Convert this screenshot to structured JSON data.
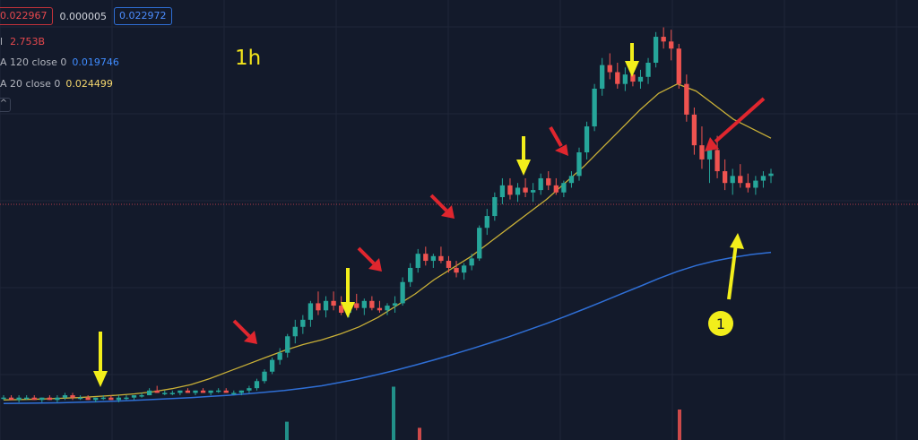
{
  "legend": {
    "ohlc_box_red": "0.022967",
    "change": "0.000005",
    "ohlc_box_blue": "0.022972",
    "vol_label": "l",
    "vol_value": "2.753B",
    "ma120_label": "A 120 close 0",
    "ma120_value": "0.019746",
    "ma20_label": "A 20 close 0",
    "ma20_value": "0.024499",
    "collapse_glyph": "^"
  },
  "timeframe": "1h",
  "annotation_number": "1",
  "colors": {
    "background": "#131a2b",
    "grid": "#1f2638",
    "up_candle": "#26a69a",
    "down_candle": "#ef5350",
    "ma20": "#c9b037",
    "ma120": "#2f6fd6",
    "price_line": "#b23a48",
    "arrow_red": "#e0262e",
    "arrow_yellow": "#f2ee1b"
  },
  "chart_data": {
    "type": "candlestick",
    "interval": "1h",
    "ylim": [
      0.0125,
      0.0296
    ],
    "last_price": 0.022967,
    "candles": [
      [
        0.0135,
        0.0136,
        0.0134,
        0.0135
      ],
      [
        0.0135,
        0.0136,
        0.0134,
        0.0134
      ],
      [
        0.0134,
        0.0136,
        0.0133,
        0.0135
      ],
      [
        0.0135,
        0.0136,
        0.0134,
        0.0135
      ],
      [
        0.0135,
        0.0136,
        0.0134,
        0.0134
      ],
      [
        0.0134,
        0.0135,
        0.0133,
        0.0135
      ],
      [
        0.0135,
        0.0136,
        0.0134,
        0.0134
      ],
      [
        0.0134,
        0.0136,
        0.0133,
        0.0135
      ],
      [
        0.0135,
        0.0137,
        0.0134,
        0.0136
      ],
      [
        0.0136,
        0.0137,
        0.0134,
        0.0135
      ],
      [
        0.0135,
        0.0136,
        0.0134,
        0.0135
      ],
      [
        0.0135,
        0.0136,
        0.0134,
        0.0134
      ],
      [
        0.0134,
        0.0135,
        0.0133,
        0.0135
      ],
      [
        0.0135,
        0.0136,
        0.0134,
        0.0135
      ],
      [
        0.0135,
        0.0136,
        0.0134,
        0.0134
      ],
      [
        0.0134,
        0.0136,
        0.0133,
        0.0135
      ],
      [
        0.0135,
        0.0136,
        0.0134,
        0.0135
      ],
      [
        0.0135,
        0.0136,
        0.0134,
        0.0136
      ],
      [
        0.0136,
        0.0137,
        0.0135,
        0.0136
      ],
      [
        0.0136,
        0.0139,
        0.0136,
        0.0138
      ],
      [
        0.0138,
        0.014,
        0.0137,
        0.0137
      ],
      [
        0.0137,
        0.0138,
        0.0136,
        0.0137
      ],
      [
        0.0137,
        0.0138,
        0.0136,
        0.0137
      ],
      [
        0.0137,
        0.0138,
        0.0136,
        0.0138
      ],
      [
        0.0138,
        0.0139,
        0.0137,
        0.0137
      ],
      [
        0.0137,
        0.0138,
        0.0136,
        0.0138
      ],
      [
        0.0138,
        0.0139,
        0.0137,
        0.0137
      ],
      [
        0.0137,
        0.0138,
        0.0136,
        0.0138
      ],
      [
        0.0138,
        0.0139,
        0.0137,
        0.0138
      ],
      [
        0.0138,
        0.0139,
        0.0137,
        0.0137
      ],
      [
        0.0137,
        0.0138,
        0.0136,
        0.0137
      ],
      [
        0.0137,
        0.0138,
        0.0136,
        0.0138
      ],
      [
        0.0138,
        0.014,
        0.0137,
        0.0139
      ],
      [
        0.0139,
        0.0143,
        0.0138,
        0.0142
      ],
      [
        0.0142,
        0.0147,
        0.0141,
        0.0146
      ],
      [
        0.0146,
        0.0152,
        0.0145,
        0.0151
      ],
      [
        0.0151,
        0.0156,
        0.0149,
        0.0154
      ],
      [
        0.0154,
        0.0162,
        0.0152,
        0.0161
      ],
      [
        0.0161,
        0.0168,
        0.0158,
        0.0165
      ],
      [
        0.0165,
        0.017,
        0.0162,
        0.0168
      ],
      [
        0.0168,
        0.0176,
        0.0165,
        0.0175
      ],
      [
        0.0175,
        0.018,
        0.017,
        0.0172
      ],
      [
        0.0172,
        0.0178,
        0.0169,
        0.0176
      ],
      [
        0.0176,
        0.018,
        0.0172,
        0.0174
      ],
      [
        0.0174,
        0.0178,
        0.017,
        0.0171
      ],
      [
        0.0171,
        0.0176,
        0.0169,
        0.0175
      ],
      [
        0.0175,
        0.0179,
        0.0172,
        0.0173
      ],
      [
        0.0173,
        0.0177,
        0.017,
        0.0176
      ],
      [
        0.0176,
        0.0178,
        0.0172,
        0.0173
      ],
      [
        0.0173,
        0.0176,
        0.0171,
        0.0172
      ],
      [
        0.0172,
        0.0175,
        0.017,
        0.0174
      ],
      [
        0.0174,
        0.0178,
        0.0171,
        0.0175
      ],
      [
        0.0175,
        0.0186,
        0.0174,
        0.0184
      ],
      [
        0.0184,
        0.0192,
        0.0182,
        0.019
      ],
      [
        0.019,
        0.0198,
        0.0188,
        0.0196
      ],
      [
        0.0196,
        0.0199,
        0.0191,
        0.0193
      ],
      [
        0.0193,
        0.0196,
        0.019,
        0.0195
      ],
      [
        0.0195,
        0.0199,
        0.0192,
        0.0193
      ],
      [
        0.0193,
        0.0195,
        0.0188,
        0.019
      ],
      [
        0.019,
        0.0193,
        0.0186,
        0.0188
      ],
      [
        0.0188,
        0.0192,
        0.0185,
        0.0191
      ],
      [
        0.0191,
        0.0196,
        0.0189,
        0.0194
      ],
      [
        0.0194,
        0.0208,
        0.0193,
        0.0207
      ],
      [
        0.0207,
        0.0215,
        0.0204,
        0.0212
      ],
      [
        0.0212,
        0.0222,
        0.021,
        0.022
      ],
      [
        0.022,
        0.0228,
        0.0217,
        0.0225
      ],
      [
        0.0225,
        0.0228,
        0.0219,
        0.0221
      ],
      [
        0.0221,
        0.0226,
        0.0218,
        0.0224
      ],
      [
        0.0224,
        0.0228,
        0.022,
        0.0222
      ],
      [
        0.0222,
        0.0226,
        0.0218,
        0.0223
      ],
      [
        0.0223,
        0.023,
        0.0221,
        0.0228
      ],
      [
        0.0228,
        0.0231,
        0.0223,
        0.0225
      ],
      [
        0.0225,
        0.0228,
        0.0221,
        0.0222
      ],
      [
        0.0222,
        0.0227,
        0.022,
        0.0226
      ],
      [
        0.0226,
        0.0231,
        0.0224,
        0.0229
      ],
      [
        0.0229,
        0.0241,
        0.0227,
        0.0239
      ],
      [
        0.0239,
        0.0252,
        0.0236,
        0.025
      ],
      [
        0.025,
        0.0268,
        0.0248,
        0.0266
      ],
      [
        0.0266,
        0.0279,
        0.0263,
        0.0276
      ],
      [
        0.0276,
        0.0281,
        0.027,
        0.0273
      ],
      [
        0.0273,
        0.0277,
        0.0266,
        0.0268
      ],
      [
        0.0268,
        0.0275,
        0.0265,
        0.0272
      ],
      [
        0.0272,
        0.0276,
        0.0267,
        0.0269
      ],
      [
        0.0269,
        0.0274,
        0.0266,
        0.0271
      ],
      [
        0.0271,
        0.0279,
        0.0268,
        0.0277
      ],
      [
        0.0277,
        0.029,
        0.0275,
        0.0288
      ],
      [
        0.0288,
        0.0292,
        0.0283,
        0.0286
      ],
      [
        0.0286,
        0.0291,
        0.0278,
        0.0283
      ],
      [
        0.0283,
        0.0285,
        0.0266,
        0.0268
      ],
      [
        0.0268,
        0.0272,
        0.0252,
        0.0255
      ],
      [
        0.0255,
        0.0258,
        0.0238,
        0.0242
      ],
      [
        0.0242,
        0.025,
        0.0232,
        0.0236
      ],
      [
        0.0236,
        0.0244,
        0.0226,
        0.024
      ],
      [
        0.024,
        0.0246,
        0.0228,
        0.0231
      ],
      [
        0.0231,
        0.0236,
        0.0223,
        0.0226
      ],
      [
        0.0226,
        0.0232,
        0.0221,
        0.0229
      ],
      [
        0.0229,
        0.0234,
        0.0224,
        0.0226
      ],
      [
        0.0226,
        0.023,
        0.0222,
        0.0224
      ],
      [
        0.0224,
        0.0229,
        0.0221,
        0.0227
      ],
      [
        0.0227,
        0.0231,
        0.0224,
        0.0229
      ],
      [
        0.0229,
        0.0232,
        0.0226,
        0.023
      ]
    ],
    "ma20": [
      0.0134,
      0.01342,
      0.01344,
      0.01347,
      0.0135,
      0.01355,
      0.0136,
      0.01366,
      0.01375,
      0.01388,
      0.01405,
      0.0143,
      0.0146,
      0.0149,
      0.0152,
      0.0155,
      0.01575,
      0.01595,
      0.0162,
      0.0165,
      0.0169,
      0.0174,
      0.0179,
      0.0185,
      0.019,
      0.0195,
      0.0201,
      0.0207,
      0.0213,
      0.0219,
      0.0226,
      0.0233,
      0.0241,
      0.0249,
      0.0257,
      0.0264,
      0.0268,
      0.0265,
      0.0259,
      0.0253,
      0.0249,
      0.0245
    ],
    "ma120": [
      0.01325,
      0.01326,
      0.01327,
      0.01328,
      0.0133,
      0.01332,
      0.01335,
      0.01338,
      0.01342,
      0.01346,
      0.0135,
      0.01355,
      0.0136,
      0.01366,
      0.01373,
      0.0138,
      0.0139,
      0.014,
      0.01415,
      0.0143,
      0.01448,
      0.01467,
      0.01488,
      0.0151,
      0.01533,
      0.01557,
      0.01582,
      0.01608,
      0.01636,
      0.01664,
      0.01694,
      0.01725,
      0.01757,
      0.0179,
      0.01822,
      0.01855,
      0.01885,
      0.0191,
      0.0193,
      0.01945,
      0.01957,
      0.01966
    ],
    "volume_bars": [
      0.12,
      0.35,
      0.08,
      0.2
    ]
  }
}
